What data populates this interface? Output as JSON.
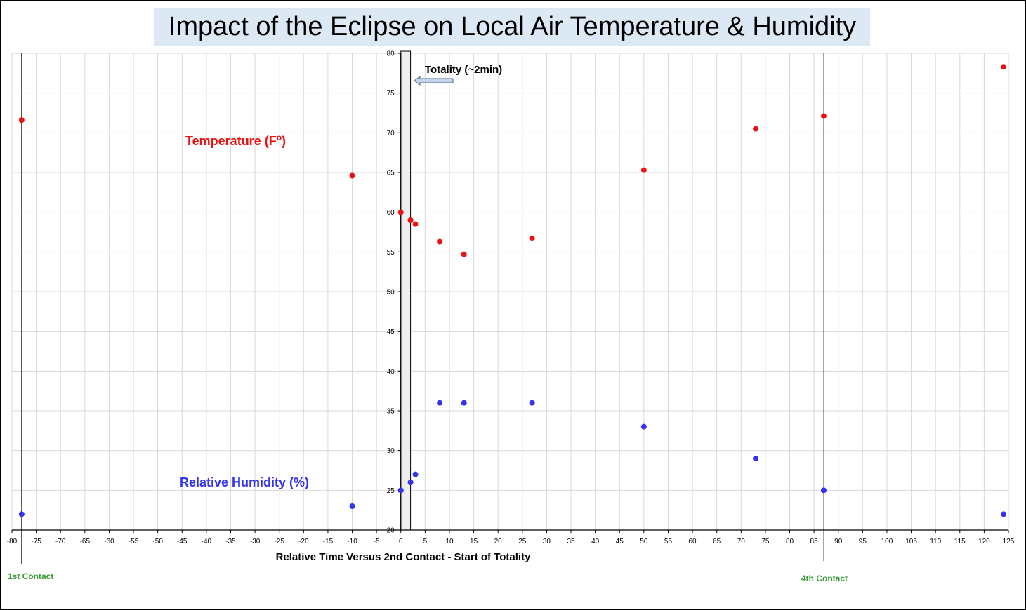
{
  "chart_data": {
    "type": "scatter",
    "title": "Impact of the Eclipse on Local Air Temperature & Humidity",
    "xlabel": "Relative Time Versus 2nd Contact - Start of Totality",
    "ylabel": "",
    "xlim": [
      -80,
      125
    ],
    "ylim": [
      20,
      80
    ],
    "x_tick_step": 5,
    "y_tick_step": 5,
    "grid": true,
    "series": [
      {
        "name": "Temperature (F",
        "name_sup": "o",
        "name_suffix": ")",
        "color": "#ee1111",
        "x": [
          -78,
          -10,
          0,
          2,
          3,
          8,
          13,
          27,
          50,
          73,
          87,
          124
        ],
        "y": [
          71.6,
          64.6,
          60,
          59,
          58.5,
          56.3,
          54.7,
          56.7,
          65.3,
          70.5,
          72.1,
          78.3
        ]
      },
      {
        "name": "Relative Humidity (%)",
        "color": "#3333ee",
        "x": [
          -78,
          -10,
          0,
          2,
          3,
          8,
          13,
          27,
          50,
          73,
          87,
          124
        ],
        "y": [
          22,
          23,
          25,
          26,
          27,
          36,
          36,
          36,
          33,
          29,
          25,
          22
        ]
      }
    ],
    "totality_band": {
      "x_start": 0,
      "x_end": 2,
      "label": "Totality (~2min)"
    },
    "contacts": [
      {
        "x": -78,
        "label": "1st Contact"
      },
      {
        "x": 87,
        "label": "4th Contact"
      }
    ],
    "contact_label_color": "#3a9a3a"
  }
}
